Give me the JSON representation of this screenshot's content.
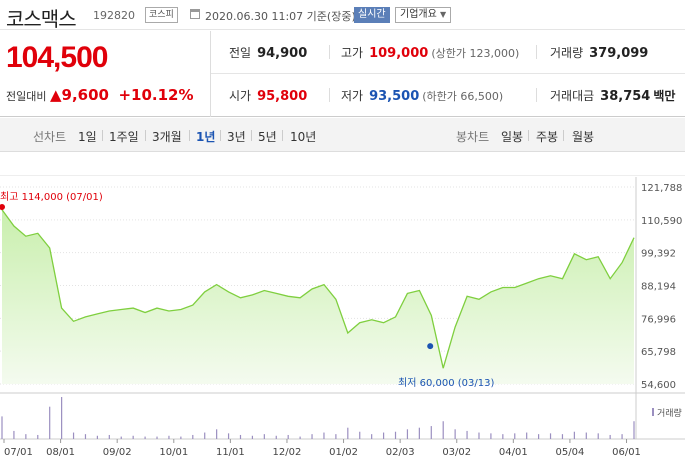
{
  "header": {
    "stock_name": "코스맥스",
    "stock_code": "192820",
    "market_badge": "코스피",
    "timestamp": "2020.06.30 11:07 기준(장중)",
    "live_button": "실시간",
    "company_dropdown": "기업개요"
  },
  "quote": {
    "price": "104,500",
    "change_label": "전일대비",
    "change_value": "9,600",
    "change_pct": "+10.12%",
    "prev_close_label": "전일",
    "prev_close": "94,900",
    "high_label": "고가",
    "high": "109,000",
    "upper_limit": "(상한가 123,000)",
    "volume_label": "거래량",
    "volume": "379,099",
    "open_label": "시가",
    "open": "95,800",
    "low_label": "저가",
    "low": "93,500",
    "lower_limit": "(하한가 66,500)",
    "amount_label": "거래대금",
    "amount": "38,754",
    "amount_unit": "백만"
  },
  "tabs": {
    "line_chart_label": "선차트",
    "periods": [
      "1일",
      "1주일",
      "3개월",
      "1년",
      "3년",
      "5년",
      "10년"
    ],
    "selected_period": "1년",
    "candle_chart_label": "봉차트",
    "candles": [
      "일봉",
      "주봉",
      "월봉"
    ]
  },
  "colors": {
    "up": "#e0000a",
    "down": "#1b54b2",
    "line": "#7fcf3f",
    "fill": "#e6f7d6",
    "volume": "#9b8fc0"
  },
  "chart_data": {
    "type": "area",
    "ylim": [
      54600,
      121788
    ],
    "y_ticks": [
      "121,788",
      "110,590",
      "99,392",
      "88,194",
      "76,996",
      "65,798",
      "54,600"
    ],
    "x_ticks": [
      "07/01",
      "08/01",
      "09/02",
      "10/01",
      "11/01",
      "12/02",
      "01/02",
      "02/03",
      "03/02",
      "04/01",
      "05/04",
      "06/01"
    ],
    "high_annotation": "최고 114,000 (07/01)",
    "low_annotation": "최저 60,000 (03/13)",
    "volume_label": "거래량",
    "x": [
      "07/01",
      "07/08",
      "07/15",
      "07/22",
      "07/29",
      "08/05",
      "08/12",
      "08/19",
      "08/26",
      "09/02",
      "09/09",
      "09/16",
      "09/23",
      "09/30",
      "10/07",
      "10/14",
      "10/21",
      "10/28",
      "11/04",
      "11/11",
      "11/18",
      "11/25",
      "12/02",
      "12/09",
      "12/16",
      "12/23",
      "12/30",
      "01/06",
      "01/13",
      "01/20",
      "01/27",
      "02/03",
      "02/10",
      "02/17",
      "02/24",
      "03/02",
      "03/06",
      "03/13",
      "03/20",
      "03/27",
      "04/03",
      "04/10",
      "04/17",
      "04/24",
      "05/01",
      "05/08",
      "05/15",
      "05/22",
      "05/29",
      "06/05",
      "06/12",
      "06/19",
      "06/26",
      "06/30"
    ],
    "values": [
      114000,
      108500,
      105000,
      106000,
      101000,
      80500,
      76000,
      77500,
      78500,
      79500,
      80000,
      80500,
      79000,
      80500,
      79500,
      80000,
      81500,
      86000,
      88500,
      86000,
      84000,
      85000,
      86500,
      85500,
      84500,
      84000,
      87000,
      88500,
      83500,
      72000,
      75500,
      76500,
      75500,
      77500,
      85500,
      86500,
      78000,
      60000,
      74000,
      84500,
      83500,
      86000,
      87500,
      87500,
      89000,
      90500,
      91500,
      90500,
      99000,
      97000,
      98000,
      90500,
      96000,
      104500
    ],
    "volume": [
      28,
      10,
      6,
      5,
      40,
      52,
      8,
      6,
      4,
      5,
      3,
      4,
      3,
      3,
      4,
      3,
      5,
      8,
      12,
      7,
      5,
      4,
      6,
      4,
      5,
      3,
      6,
      8,
      6,
      14,
      9,
      6,
      8,
      9,
      12,
      14,
      16,
      22,
      12,
      10,
      8,
      7,
      6,
      7,
      8,
      6,
      7,
      6,
      9,
      8,
      7,
      5,
      6,
      22
    ]
  }
}
